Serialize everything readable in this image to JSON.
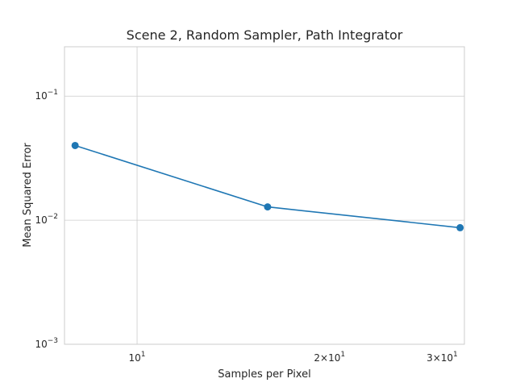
{
  "chart_data": {
    "type": "line",
    "title": "Scene 2, Random Sampler, Path Integrator",
    "xlabel": "Samples per Pixel",
    "ylabel": "Mean Squared Error",
    "xscale": "log",
    "yscale": "log",
    "xlim": [
      7.7,
      32.5
    ],
    "ylim": [
      0.001,
      0.25
    ],
    "grid": true,
    "x_ticks": [
      {
        "value": 10,
        "base": "10",
        "exp": "1"
      },
      {
        "value": 20,
        "base": "2×10",
        "exp": "1"
      },
      {
        "value": 30,
        "base": "3×10",
        "exp": "1"
      }
    ],
    "y_ticks": [
      {
        "value": 0.001,
        "base": "10",
        "exp": "−3"
      },
      {
        "value": 0.01,
        "base": "10",
        "exp": "−2"
      },
      {
        "value": 0.1,
        "base": "10",
        "exp": "−1"
      }
    ],
    "series": [
      {
        "color": "#1f77b4",
        "x": [
          8,
          16,
          32
        ],
        "y": [
          0.04,
          0.0128,
          0.0087
        ]
      }
    ]
  }
}
